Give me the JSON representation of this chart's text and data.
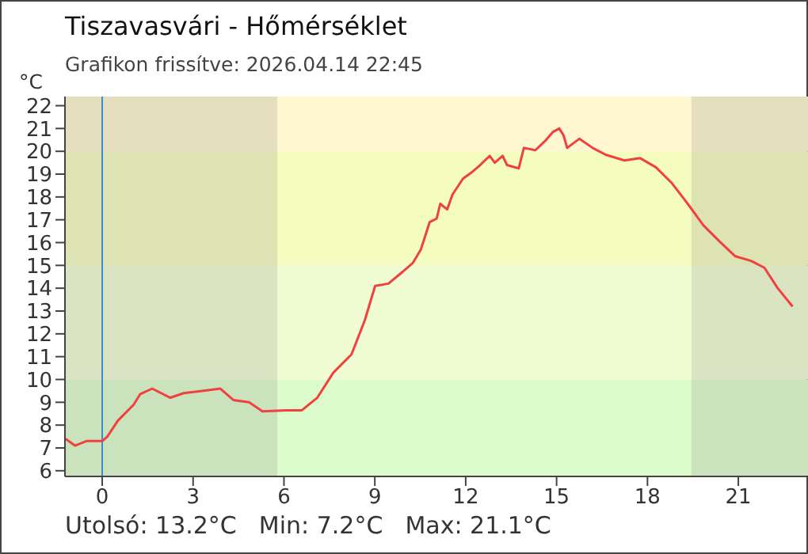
{
  "chart_data": {
    "type": "line",
    "title": "Tiszavasvári - Hőmérséklet",
    "subtitle": "Grafikon frissítve: 2026.04.14 22:45",
    "ylabel": "°C",
    "annotations": [
      "Utolsó: 13.2°C",
      "Min: 7.2°C",
      "Max: 21.1°C"
    ],
    "x": [
      -1.21,
      -0.9,
      -0.52,
      0,
      0.17,
      0.52,
      1.04,
      1.25,
      1.65,
      2.25,
      2.69,
      3.29,
      3.9,
      4.33,
      4.85,
      5.29,
      6.07,
      6.59,
      7.1,
      7.63,
      8.23,
      8.67,
      9.01,
      9.45,
      9.9,
      10.25,
      10.52,
      10.69,
      10.81,
      11.04,
      11.16,
      11.39,
      11.56,
      11.91,
      12.17,
      12.44,
      12.79,
      12.96,
      13.22,
      13.36,
      13.75,
      13.92,
      14.3,
      14.62,
      14.88,
      15.09,
      15.23,
      15.35,
      15.75,
      16.19,
      16.62,
      17.24,
      17.76,
      18.28,
      18.81,
      19.33,
      19.85,
      20.38,
      20.9,
      21.42,
      21.86,
      22.3,
      22.79
    ],
    "series": [
      {
        "color": "#f04040",
        "values": [
          7.4,
          7.1,
          7.3,
          7.3,
          7.5,
          8.2,
          8.9,
          9.35,
          9.6,
          9.2,
          9.4,
          9.5,
          9.6,
          9.1,
          9,
          8.6,
          8.65,
          8.65,
          9.2,
          10.3,
          11.1,
          12.6,
          14.1,
          14.2,
          14.7,
          15.1,
          15.7,
          16.4,
          16.9,
          17.05,
          17.7,
          17.45,
          18.1,
          18.8,
          19.05,
          19.35,
          19.8,
          19.5,
          19.8,
          19.4,
          19.25,
          20.15,
          20.05,
          20.45,
          20.85,
          21,
          20.7,
          20.15,
          20.55,
          20.15,
          19.85,
          19.6,
          19.7,
          19.3,
          18.6,
          17.7,
          16.75,
          16.05,
          15.4,
          15.2,
          14.9,
          14,
          13.2
        ]
      }
    ],
    "xlim": [
      -1.23,
      23.3
    ],
    "xticks": [
      0,
      3,
      6,
      9,
      12,
      15,
      18,
      21
    ],
    "ylim": [
      5.75,
      22.4
    ],
    "yticks": [
      6,
      7,
      8,
      9,
      10,
      11,
      12,
      13,
      14,
      15,
      16,
      17,
      18,
      19,
      20,
      21,
      22
    ],
    "bands": [
      {
        "axis": "y",
        "from": 5.75,
        "to": 10,
        "color": "#dcfccb"
      },
      {
        "axis": "y",
        "from": 10,
        "to": 15,
        "color": "#f0fcd2"
      },
      {
        "axis": "y",
        "from": 15,
        "to": 20,
        "color": "#f5fcc0"
      },
      {
        "axis": "y",
        "from": 20,
        "to": 22.4,
        "color": "#fef7cf"
      },
      {
        "axis": "x",
        "from": -1.23,
        "to": 5.78,
        "color": "#808080"
      },
      {
        "axis": "x",
        "from": 19.45,
        "to": 23.3,
        "color": "#808080"
      }
    ],
    "ref_lines": [
      {
        "axis": "x",
        "value": 0,
        "color": "#3a8dc8"
      }
    ],
    "grid": false,
    "legend": false,
    "marker": "none",
    "line_style": "solid"
  }
}
